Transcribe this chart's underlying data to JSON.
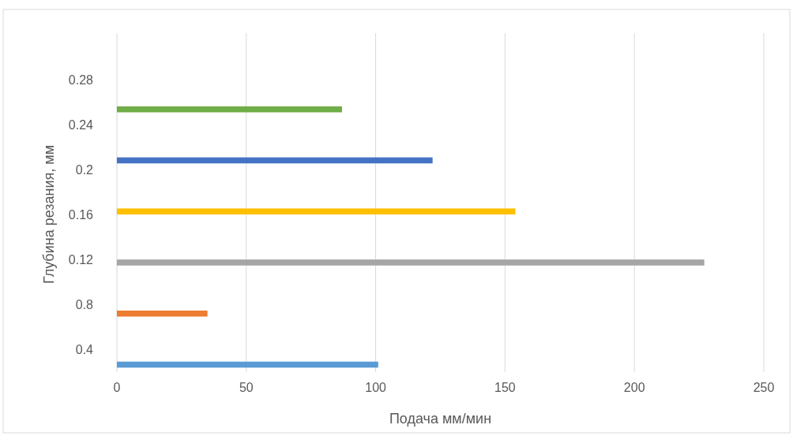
{
  "chart_data": {
    "type": "bar",
    "orientation": "horizontal",
    "xlabel": "Подача мм/мин",
    "ylabel": "Глубина резания, мм",
    "categories": [
      "0.28",
      "0.24",
      "0.2",
      "0.16",
      "0.12",
      "0.8",
      "0.4"
    ],
    "series": [
      {
        "color": "#5b9bd5",
        "values": [
          null,
          null,
          null,
          null,
          null,
          null,
          101
        ]
      },
      {
        "color": "#ed7d31",
        "values": [
          null,
          null,
          null,
          null,
          null,
          35,
          null
        ]
      },
      {
        "color": "#a5a5a5",
        "values": [
          null,
          null,
          null,
          null,
          227,
          null,
          null
        ]
      },
      {
        "color": "#ffc000",
        "values": [
          null,
          null,
          null,
          154,
          null,
          null,
          null
        ]
      },
      {
        "color": "#4472c4",
        "values": [
          null,
          null,
          122,
          null,
          null,
          null,
          null
        ]
      },
      {
        "color": "#70ad47",
        "values": [
          null,
          87,
          null,
          null,
          null,
          null,
          null
        ]
      }
    ],
    "xlim": [
      0,
      250
    ],
    "xticks": [
      0,
      50,
      100,
      150,
      200,
      250
    ],
    "grid": "x"
  }
}
